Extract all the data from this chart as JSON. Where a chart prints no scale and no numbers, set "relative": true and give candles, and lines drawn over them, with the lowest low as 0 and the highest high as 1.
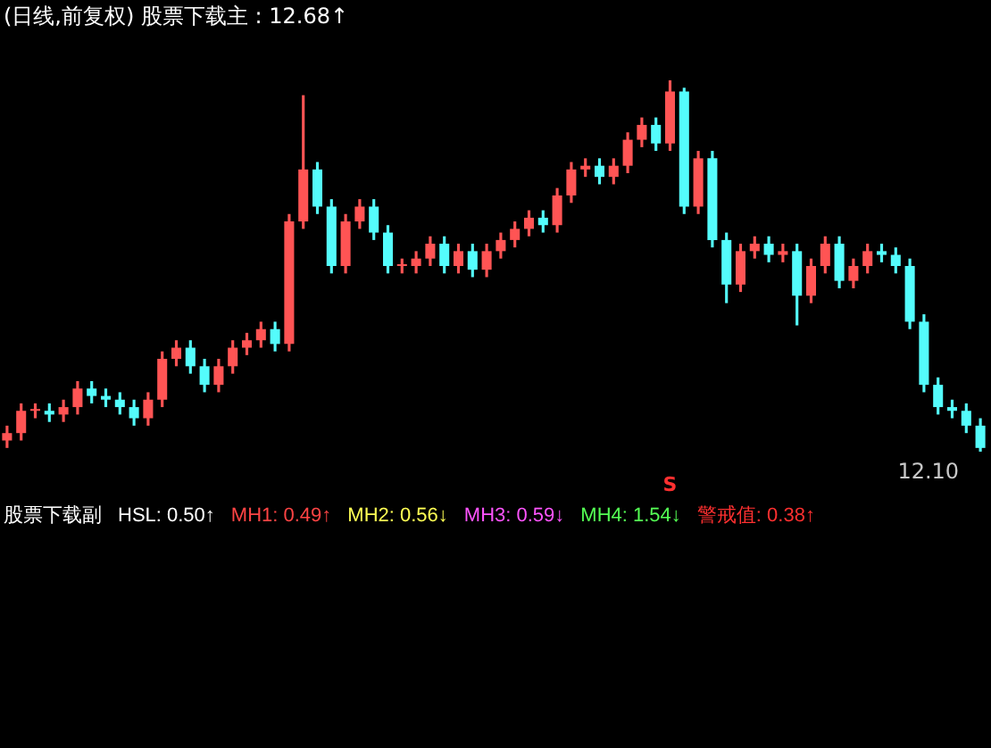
{
  "chart_data": [
    {
      "type": "candlestick",
      "title": "(日线,前复权) 股票下载主 : 12.68↑",
      "relative": true,
      "legend": false,
      "categories": [
        null,
        null,
        null,
        null,
        null,
        null,
        null,
        null,
        null,
        null,
        null,
        null,
        null,
        null,
        null,
        null,
        null,
        null,
        null,
        null,
        null,
        null,
        null,
        null,
        null,
        null,
        null,
        null,
        null,
        null,
        null,
        null,
        null,
        null,
        null,
        null,
        null,
        null,
        null,
        null,
        null,
        null,
        null,
        null,
        null,
        null,
        null,
        null,
        null,
        null,
        null,
        null,
        null,
        null,
        null,
        null,
        null,
        null,
        null,
        null,
        null,
        null,
        null,
        null,
        null,
        null,
        null,
        null,
        null,
        null
      ],
      "ohlc": [
        [
          0.03,
          0.07,
          0.01,
          0.05
        ],
        [
          0.05,
          0.13,
          0.03,
          0.11
        ],
        [
          0.11,
          0.13,
          0.09,
          0.11
        ],
        [
          0.11,
          0.13,
          0.08,
          0.1
        ],
        [
          0.1,
          0.14,
          0.08,
          0.12
        ],
        [
          0.12,
          0.19,
          0.1,
          0.17
        ],
        [
          0.17,
          0.19,
          0.13,
          0.15
        ],
        [
          0.15,
          0.17,
          0.12,
          0.14
        ],
        [
          0.14,
          0.16,
          0.1,
          0.12
        ],
        [
          0.12,
          0.14,
          0.07,
          0.09
        ],
        [
          0.09,
          0.16,
          0.07,
          0.14
        ],
        [
          0.14,
          0.27,
          0.12,
          0.25
        ],
        [
          0.25,
          0.3,
          0.23,
          0.28
        ],
        [
          0.28,
          0.3,
          0.21,
          0.23
        ],
        [
          0.23,
          0.25,
          0.16,
          0.18
        ],
        [
          0.18,
          0.25,
          0.16,
          0.23
        ],
        [
          0.23,
          0.3,
          0.21,
          0.28
        ],
        [
          0.28,
          0.32,
          0.26,
          0.3
        ],
        [
          0.3,
          0.35,
          0.28,
          0.33
        ],
        [
          0.33,
          0.35,
          0.27,
          0.29
        ],
        [
          0.29,
          0.64,
          0.27,
          0.62
        ],
        [
          0.62,
          0.96,
          0.6,
          0.76
        ],
        [
          0.76,
          0.78,
          0.64,
          0.66
        ],
        [
          0.66,
          0.68,
          0.48,
          0.5
        ],
        [
          0.5,
          0.64,
          0.48,
          0.62
        ],
        [
          0.62,
          0.68,
          0.6,
          0.66
        ],
        [
          0.66,
          0.68,
          0.57,
          0.59
        ],
        [
          0.59,
          0.61,
          0.48,
          0.5
        ],
        [
          0.5,
          0.52,
          0.48,
          0.5
        ],
        [
          0.5,
          0.54,
          0.48,
          0.52
        ],
        [
          0.52,
          0.58,
          0.5,
          0.56
        ],
        [
          0.56,
          0.58,
          0.48,
          0.5
        ],
        [
          0.5,
          0.56,
          0.48,
          0.54
        ],
        [
          0.54,
          0.56,
          0.47,
          0.49
        ],
        [
          0.49,
          0.56,
          0.47,
          0.54
        ],
        [
          0.54,
          0.59,
          0.52,
          0.57
        ],
        [
          0.57,
          0.62,
          0.55,
          0.6
        ],
        [
          0.6,
          0.65,
          0.58,
          0.63
        ],
        [
          0.63,
          0.65,
          0.59,
          0.61
        ],
        [
          0.61,
          0.71,
          0.59,
          0.69
        ],
        [
          0.69,
          0.78,
          0.67,
          0.76
        ],
        [
          0.76,
          0.79,
          0.74,
          0.77
        ],
        [
          0.77,
          0.79,
          0.72,
          0.74
        ],
        [
          0.74,
          0.79,
          0.72,
          0.77
        ],
        [
          0.77,
          0.86,
          0.75,
          0.84
        ],
        [
          0.84,
          0.9,
          0.82,
          0.88
        ],
        [
          0.88,
          0.9,
          0.81,
          0.83
        ],
        [
          0.83,
          1.0,
          0.81,
          0.97
        ],
        [
          0.97,
          0.98,
          0.64,
          0.66
        ],
        [
          0.66,
          0.81,
          0.64,
          0.79
        ],
        [
          0.79,
          0.81,
          0.55,
          0.57
        ],
        [
          0.57,
          0.59,
          0.4,
          0.45
        ],
        [
          0.45,
          0.56,
          0.43,
          0.54
        ],
        [
          0.54,
          0.58,
          0.52,
          0.56
        ],
        [
          0.56,
          0.58,
          0.51,
          0.53
        ],
        [
          0.53,
          0.56,
          0.51,
          0.54
        ],
        [
          0.54,
          0.56,
          0.34,
          0.42
        ],
        [
          0.42,
          0.52,
          0.4,
          0.5
        ],
        [
          0.5,
          0.58,
          0.48,
          0.56
        ],
        [
          0.56,
          0.58,
          0.44,
          0.46
        ],
        [
          0.46,
          0.52,
          0.44,
          0.5
        ],
        [
          0.5,
          0.56,
          0.48,
          0.54
        ],
        [
          0.54,
          0.56,
          0.51,
          0.53
        ],
        [
          0.53,
          0.55,
          0.48,
          0.5
        ],
        [
          0.5,
          0.52,
          0.33,
          0.35
        ],
        [
          0.35,
          0.37,
          0.16,
          0.18
        ],
        [
          0.18,
          0.2,
          0.1,
          0.12
        ],
        [
          0.12,
          0.14,
          0.09,
          0.11
        ],
        [
          0.11,
          0.13,
          0.05,
          0.07
        ],
        [
          0.07,
          0.09,
          0.0,
          0.01
        ]
      ],
      "colors": [
        "#ff5454",
        "#ff5454",
        "#ff5454",
        "#54fcfc",
        "#ff5454",
        "#ff5454",
        "#54fcfc",
        "#54fcfc",
        "#54fcfc",
        "#54fcfc",
        "#ff5454",
        "#ff5454",
        "#ff5454",
        "#54fcfc",
        "#54fcfc",
        "#ff5454",
        "#ff5454",
        "#ff5454",
        "#ff5454",
        "#54fcfc",
        "#ff5454",
        "#ff5454",
        "#54fcfc",
        "#54fcfc",
        "#ff5454",
        "#ff5454",
        "#54fcfc",
        "#54fcfc",
        "#ff5454",
        "#ff5454",
        "#ff5454",
        "#54fcfc",
        "#ff5454",
        "#54fcfc",
        "#ff5454",
        "#ff5454",
        "#ff5454",
        "#ff5454",
        "#54fcfc",
        "#ff5454",
        "#ff5454",
        "#ff5454",
        "#54fcfc",
        "#ff5454",
        "#ff5454",
        "#ff5454",
        "#54fcfc",
        "#ff5454",
        "#54fcfc",
        "#ff5454",
        "#54fcfc",
        "#54fcfc",
        "#ff5454",
        "#ff5454",
        "#54fcfc",
        "#ff5454",
        "#54fcfc",
        "#ff5454",
        "#ff5454",
        "#54fcfc",
        "#ff5454",
        "#ff5454",
        "#54fcfc",
        "#54fcfc",
        "#54fcfc",
        "#54fcfc",
        "#54fcfc",
        "#54fcfc",
        "#54fcfc",
        "#54fcfc"
      ],
      "annotations": [
        "12.10",
        "S"
      ]
    },
    {
      "type": "other",
      "title": "股票下载副",
      "annotations": [
        "HSL: 0.50↑",
        "MH1: 0.49↑",
        "MH2: 0.56↓",
        "MH3: 0.59↓",
        "MH4: 1.54↓",
        "警戒值: 0.38↑"
      ]
    }
  ]
}
